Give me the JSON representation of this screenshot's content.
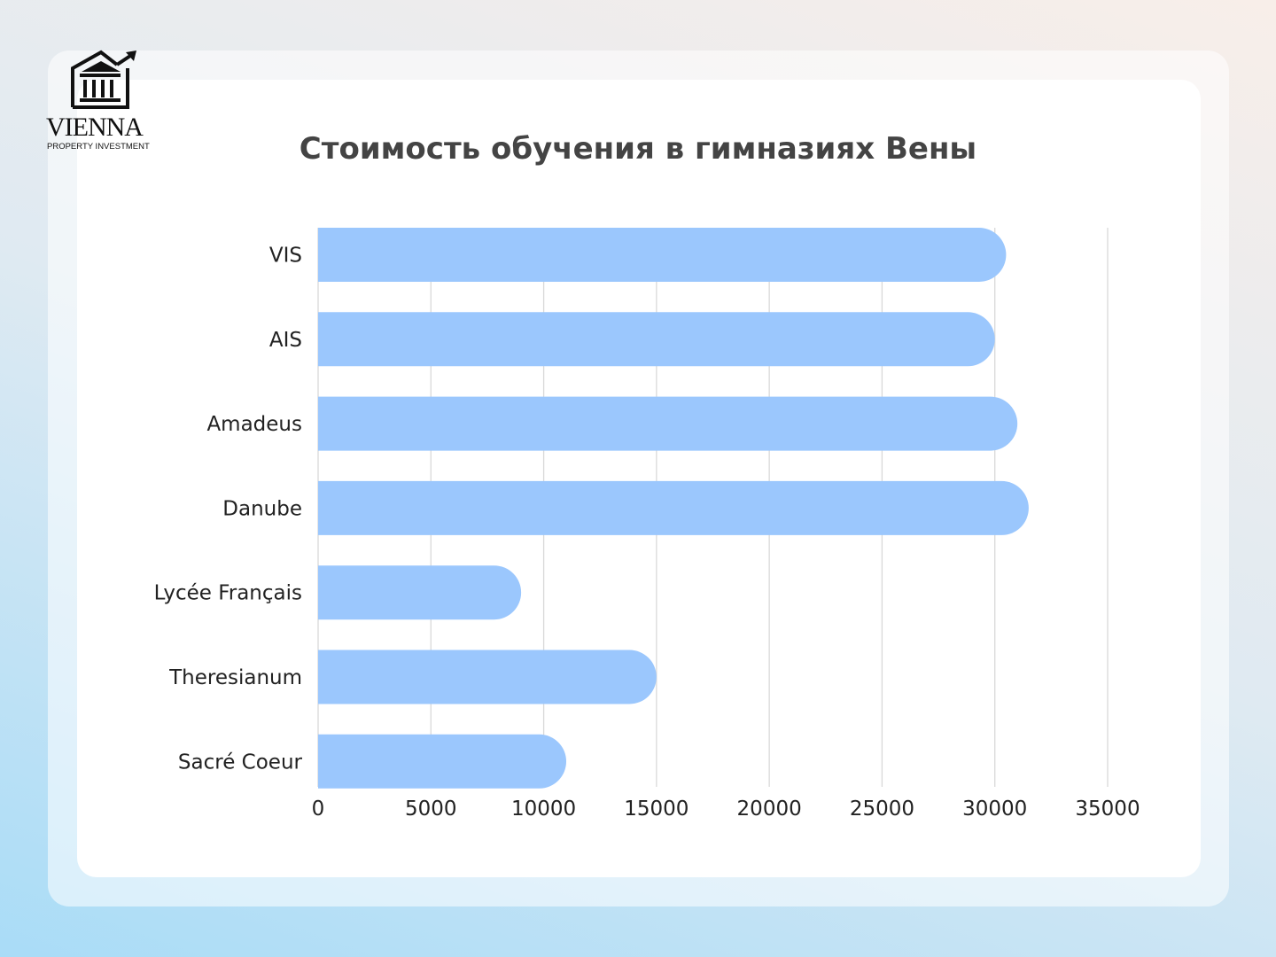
{
  "logo": {
    "word": "VIENNA",
    "subtitle": "PROPERTY INVESTMENT"
  },
  "chart_data": {
    "type": "bar",
    "orientation": "horizontal",
    "title": "Стоимость обучения в гимназиях Вены",
    "categories": [
      "VIS",
      "AIS",
      "Amadeus",
      "Danube",
      "Lycée Français",
      "Theresianum",
      "Sacré Coeur"
    ],
    "values": [
      30500,
      30000,
      31000,
      31500,
      9000,
      15000,
      11000
    ],
    "xlim": [
      0,
      35000
    ],
    "xticks": [
      "0",
      "5000",
      "10000",
      "15000",
      "20000",
      "25000",
      "30000",
      "35000"
    ],
    "grid": "vertical",
    "bar_color": "#9bc7fd",
    "xlabel": "",
    "ylabel": ""
  }
}
